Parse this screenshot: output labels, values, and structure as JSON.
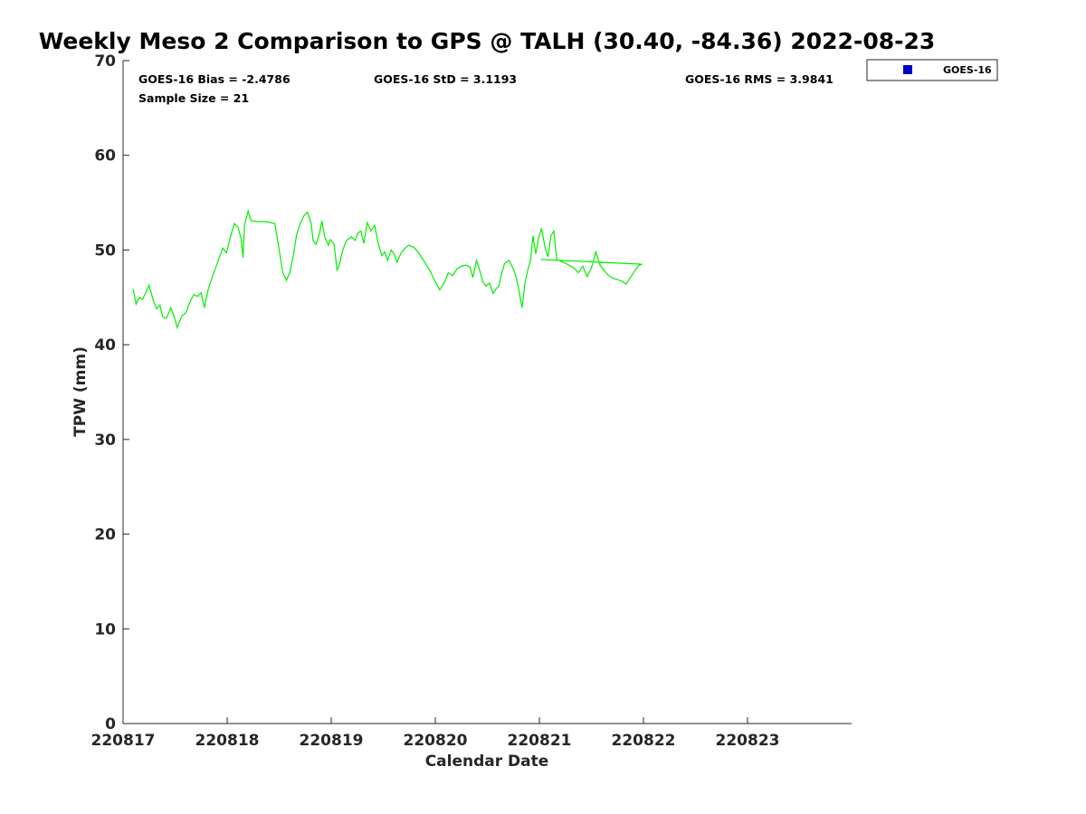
{
  "chart_data": {
    "type": "scatter",
    "title": "Weekly Meso 2 Comparison to GPS @ TALH (30.40, -84.36) 2022-08-23",
    "xlabel": "Calendar Date",
    "ylabel": "TPW (mm)",
    "xlim": [
      "2022-08-17",
      "2022-08-24"
    ],
    "ylim": [
      0,
      70
    ],
    "x_ticks": [
      "220817",
      "220818",
      "220819",
      "220820",
      "220821",
      "220822",
      "220823"
    ],
    "y_ticks": [
      "0",
      "10",
      "20",
      "30",
      "40",
      "50",
      "60",
      "70"
    ],
    "grid": false,
    "legend_position": "top-right",
    "legend": [
      "GOES-16"
    ],
    "stats": {
      "bias": "GOES-16 Bias = -2.4786",
      "std": "GOES-16 StD = 3.1193",
      "rms": "GOES-16 RMS = 3.9841",
      "sample_size": "Sample Size = 21"
    },
    "colors": {
      "gps_line": "#00ee00",
      "goes_marker": "#0000cc",
      "axis": "#262626"
    },
    "series": [
      {
        "type": "line",
        "values": [
          [
            "2022-08-17 02:20",
            45.9
          ],
          [
            "2022-08-17 03:00",
            44.3
          ],
          [
            "2022-08-17 03:45",
            45.0
          ],
          [
            "2022-08-17 04:30",
            44.8
          ],
          [
            "2022-08-17 05:20",
            45.6
          ],
          [
            "2022-08-17 06:00",
            46.3
          ],
          [
            "2022-08-17 07:00",
            44.6
          ],
          [
            "2022-08-17 07:45",
            43.8
          ],
          [
            "2022-08-17 08:30",
            44.2
          ],
          [
            "2022-08-17 09:10",
            42.9
          ],
          [
            "2022-08-17 10:00",
            42.8
          ],
          [
            "2022-08-17 11:00",
            43.9
          ],
          [
            "2022-08-17 11:45",
            43.0
          ],
          [
            "2022-08-17 12:30",
            41.8
          ],
          [
            "2022-08-17 13:30",
            43.0
          ],
          [
            "2022-08-17 14:30",
            43.4
          ],
          [
            "2022-08-17 15:30",
            44.6
          ],
          [
            "2022-08-17 16:20",
            45.3
          ],
          [
            "2022-08-17 17:10",
            45.1
          ],
          [
            "2022-08-17 18:00",
            45.5
          ],
          [
            "2022-08-17 18:45",
            43.9
          ],
          [
            "2022-08-17 19:40",
            45.9
          ],
          [
            "2022-08-17 20:40",
            47.3
          ],
          [
            "2022-08-17 21:30",
            48.3
          ],
          [
            "2022-08-17 22:20",
            49.4
          ],
          [
            "2022-08-17 23:00",
            50.2
          ],
          [
            "2022-08-17 23:50",
            49.7
          ],
          [
            "2022-08-18 00:50",
            51.5
          ],
          [
            "2022-08-18 01:40",
            52.8
          ],
          [
            "2022-08-18 02:30",
            52.4
          ],
          [
            "2022-08-18 03:10",
            51.3
          ],
          [
            "2022-08-18 03:40",
            49.2
          ],
          [
            "2022-08-18 04:00",
            52.6
          ],
          [
            "2022-08-18 04:50",
            54.1
          ],
          [
            "2022-08-18 05:30",
            53.1
          ],
          [
            "2022-08-18 07:00",
            53.0
          ],
          [
            "2022-08-18 09:00",
            53.0
          ],
          [
            "2022-08-18 11:00",
            52.8
          ],
          [
            "2022-08-18 12:00",
            50.0
          ],
          [
            "2022-08-18 12:50",
            47.6
          ],
          [
            "2022-08-18 13:40",
            46.8
          ],
          [
            "2022-08-18 14:30",
            47.7
          ],
          [
            "2022-08-18 15:20",
            49.6
          ],
          [
            "2022-08-18 16:00",
            51.6
          ],
          [
            "2022-08-18 16:50",
            52.8
          ],
          [
            "2022-08-18 17:40",
            53.6
          ],
          [
            "2022-08-18 18:30",
            54.0
          ],
          [
            "2022-08-18 19:20",
            52.9
          ],
          [
            "2022-08-18 19:50",
            51.0
          ],
          [
            "2022-08-18 20:30",
            50.6
          ],
          [
            "2022-08-18 21:20",
            51.8
          ],
          [
            "2022-08-18 21:50",
            53.1
          ],
          [
            "2022-08-18 22:30",
            51.4
          ],
          [
            "2022-08-18 23:20",
            50.5
          ],
          [
            "2022-08-18 23:50",
            51.1
          ],
          [
            "2022-08-19 00:40",
            50.6
          ],
          [
            "2022-08-19 01:20",
            47.9
          ],
          [
            "2022-08-19 01:50",
            48.4
          ],
          [
            "2022-08-19 02:40",
            50.0
          ],
          [
            "2022-08-19 03:30",
            51.0
          ],
          [
            "2022-08-19 04:40",
            51.4
          ],
          [
            "2022-08-19 05:30",
            51.0
          ],
          [
            "2022-08-19 06:10",
            51.8
          ],
          [
            "2022-08-19 06:50",
            52.0
          ],
          [
            "2022-08-19 07:30",
            50.7
          ],
          [
            "2022-08-19 08:20",
            52.9
          ],
          [
            "2022-08-19 09:10",
            52.0
          ],
          [
            "2022-08-19 10:00",
            52.6
          ],
          [
            "2022-08-19 10:50",
            50.7
          ],
          [
            "2022-08-19 11:40",
            49.4
          ],
          [
            "2022-08-19 12:20",
            49.8
          ],
          [
            "2022-08-19 13:00",
            48.9
          ],
          [
            "2022-08-19 13:50",
            50.0
          ],
          [
            "2022-08-19 14:30",
            49.6
          ],
          [
            "2022-08-19 15:10",
            48.7
          ],
          [
            "2022-08-19 16:00",
            49.6
          ],
          [
            "2022-08-19 16:50",
            50.1
          ],
          [
            "2022-08-19 17:50",
            50.5
          ],
          [
            "2022-08-19 19:00",
            50.3
          ],
          [
            "2022-08-19 20:00",
            49.8
          ],
          [
            "2022-08-19 21:00",
            49.1
          ],
          [
            "2022-08-19 22:00",
            48.4
          ],
          [
            "2022-08-19 23:00",
            47.6
          ],
          [
            "2022-08-20 00:00",
            46.6
          ],
          [
            "2022-08-20 01:00",
            45.8
          ],
          [
            "2022-08-20 02:00",
            46.5
          ],
          [
            "2022-08-20 03:00",
            47.6
          ],
          [
            "2022-08-20 04:00",
            47.3
          ],
          [
            "2022-08-20 05:00",
            48.0
          ],
          [
            "2022-08-20 06:00",
            48.3
          ],
          [
            "2022-08-20 07:00",
            48.4
          ],
          [
            "2022-08-20 08:00",
            48.2
          ],
          [
            "2022-08-20 08:40",
            47.1
          ],
          [
            "2022-08-20 09:30",
            48.9
          ],
          [
            "2022-08-20 10:20",
            47.7
          ],
          [
            "2022-08-20 11:00",
            46.6
          ],
          [
            "2022-08-20 11:40",
            46.2
          ],
          [
            "2022-08-20 12:30",
            46.5
          ],
          [
            "2022-08-20 13:20",
            45.4
          ],
          [
            "2022-08-20 14:00",
            45.9
          ],
          [
            "2022-08-20 14:40",
            46.2
          ],
          [
            "2022-08-20 15:20",
            47.6
          ],
          [
            "2022-08-20 16:00",
            48.6
          ],
          [
            "2022-08-20 17:00",
            48.9
          ],
          [
            "2022-08-20 18:00",
            48.0
          ],
          [
            "2022-08-20 18:40",
            47.1
          ],
          [
            "2022-08-20 19:20",
            45.6
          ],
          [
            "2022-08-20 20:00",
            43.9
          ],
          [
            "2022-08-20 20:40",
            46.5
          ],
          [
            "2022-08-20 21:20",
            47.9
          ],
          [
            "2022-08-20 22:00",
            49.0
          ],
          [
            "2022-08-20 22:30",
            51.5
          ],
          [
            "2022-08-20 23:10",
            49.6
          ],
          [
            "2022-08-20 23:50",
            51.3
          ],
          [
            "2022-08-21 00:30",
            52.3
          ],
          [
            "2022-08-21 01:20",
            50.2
          ],
          [
            "2022-08-21 02:00",
            49.3
          ],
          [
            "2022-08-21 02:40",
            51.5
          ],
          [
            "2022-08-21 03:20",
            52.0
          ],
          [
            "2022-08-21 04:00",
            49.0
          ],
          [
            "2022-08-21 06:00",
            48.6
          ],
          [
            "2022-08-21 08:00",
            48.1
          ],
          [
            "2022-08-21 09:00",
            47.6
          ],
          [
            "2022-08-21 10:00",
            48.3
          ],
          [
            "2022-08-21 11:00",
            47.2
          ],
          [
            "2022-08-21 12:00",
            48.1
          ],
          [
            "2022-08-21 13:00",
            49.8
          ],
          [
            "2022-08-21 14:00",
            48.4
          ],
          [
            "2022-08-21 15:00",
            47.8
          ],
          [
            "2022-08-21 16:00",
            47.3
          ],
          [
            "2022-08-21 17:00",
            47.0
          ],
          [
            "2022-08-21 18:00",
            46.9
          ],
          [
            "2022-08-21 19:00",
            46.7
          ],
          [
            "2022-08-21 20:00",
            46.4
          ],
          [
            "2022-08-21 21:00",
            47.1
          ],
          [
            "2022-08-21 22:00",
            47.8
          ],
          [
            "2022-08-21 23:00",
            48.4
          ],
          [
            "2022-08-21 23:40",
            48.5
          ],
          [
            "2022-08-21 00:20",
            49.0
          ]
        ]
      }
    ]
  }
}
